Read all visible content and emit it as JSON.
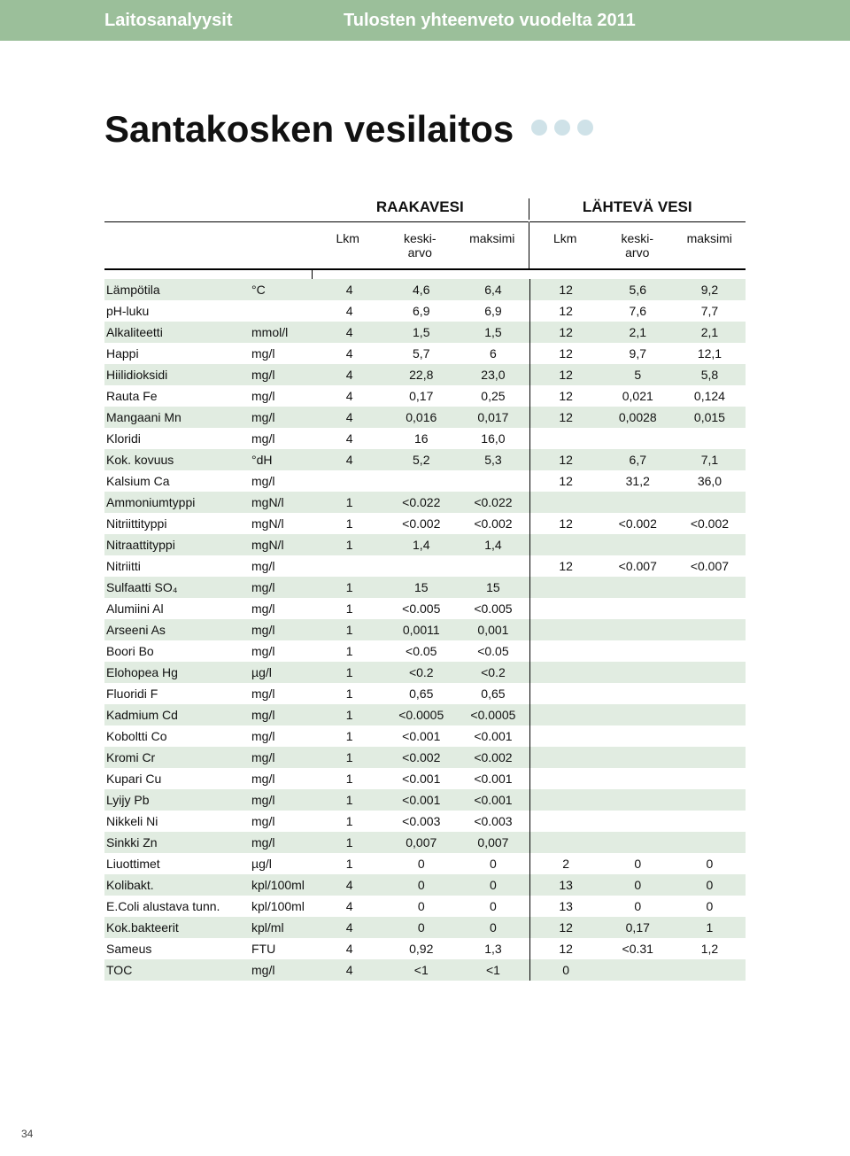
{
  "header": {
    "label1": "Laitosanalyysit",
    "label2": "Tulosten yhteenveto vuodelta 2011"
  },
  "title": "Santakosken vesilaitos",
  "dots": [
    "#cfe2e8",
    "#cfe2e8",
    "#cfe2e8"
  ],
  "sections": {
    "s1": "RAAKAVESI",
    "s2": "LÄHTEVÄ VESI"
  },
  "cols": {
    "lkm": "Lkm",
    "keskiarvo": "keski-\narvo",
    "maksimi": "maksimi"
  },
  "colors": {
    "alt_row": "#e1ece1",
    "header_bar": "#9bbf9a"
  },
  "rows": [
    {
      "alt": true,
      "param": "Lämpötila",
      "unit": "°C",
      "a": [
        "4",
        "4,6",
        "6,4"
      ],
      "b": [
        "12",
        "5,6",
        "9,2"
      ]
    },
    {
      "alt": false,
      "param": "pH-luku",
      "unit": "",
      "a": [
        "4",
        "6,9",
        "6,9"
      ],
      "b": [
        "12",
        "7,6",
        "7,7"
      ]
    },
    {
      "alt": true,
      "param": "Alkaliteetti",
      "unit": "mmol/l",
      "a": [
        "4",
        "1,5",
        "1,5"
      ],
      "b": [
        "12",
        "2,1",
        "2,1"
      ]
    },
    {
      "alt": false,
      "param": "Happi",
      "unit": "mg/l",
      "a": [
        "4",
        "5,7",
        "6"
      ],
      "b": [
        "12",
        "9,7",
        "12,1"
      ]
    },
    {
      "alt": true,
      "param": "Hiilidioksidi",
      "unit": "mg/l",
      "a": [
        "4",
        "22,8",
        "23,0"
      ],
      "b": [
        "12",
        "5",
        "5,8"
      ]
    },
    {
      "alt": false,
      "param": "Rauta Fe",
      "unit": "mg/l",
      "a": [
        "4",
        "0,17",
        "0,25"
      ],
      "b": [
        "12",
        "0,021",
        "0,124"
      ]
    },
    {
      "alt": true,
      "param": "Mangaani Mn",
      "unit": "mg/l",
      "a": [
        "4",
        "0,016",
        "0,017"
      ],
      "b": [
        "12",
        "0,0028",
        "0,015"
      ]
    },
    {
      "alt": false,
      "param": "Kloridi",
      "unit": "mg/l",
      "a": [
        "4",
        "16",
        "16,0"
      ],
      "b": [
        "",
        "",
        ""
      ]
    },
    {
      "alt": true,
      "param": "Kok. kovuus",
      "unit": "°dH",
      "a": [
        "4",
        "5,2",
        "5,3"
      ],
      "b": [
        "12",
        "6,7",
        "7,1"
      ]
    },
    {
      "alt": false,
      "param": "Kalsium Ca",
      "unit": "mg/l",
      "a": [
        "",
        "",
        ""
      ],
      "b": [
        "12",
        "31,2",
        "36,0"
      ]
    },
    {
      "alt": true,
      "param": "Ammoniumtyppi",
      "unit": "mgN/l",
      "a": [
        "1",
        "<0.022",
        "<0.022"
      ],
      "b": [
        "",
        "",
        ""
      ]
    },
    {
      "alt": false,
      "param": "Nitriittityppi",
      "unit": "mgN/l",
      "a": [
        "1",
        "<0.002",
        "<0.002"
      ],
      "b": [
        "12",
        "<0.002",
        "<0.002"
      ]
    },
    {
      "alt": true,
      "param": "Nitraattityppi",
      "unit": "mgN/l",
      "a": [
        "1",
        "1,4",
        "1,4"
      ],
      "b": [
        "",
        "",
        ""
      ]
    },
    {
      "alt": false,
      "param": "Nitriitti",
      "unit": "mg/l",
      "a": [
        "",
        "",
        ""
      ],
      "b": [
        "12",
        "<0.007",
        "<0.007"
      ]
    },
    {
      "alt": true,
      "param": "Sulfaatti SO₄",
      "unit": "mg/l",
      "a": [
        "1",
        "15",
        "15"
      ],
      "b": [
        "",
        "",
        ""
      ]
    },
    {
      "alt": false,
      "param": "Alumiini Al",
      "unit": "mg/l",
      "a": [
        "1",
        "<0.005",
        "<0.005"
      ],
      "b": [
        "",
        "",
        ""
      ]
    },
    {
      "alt": true,
      "param": "Arseeni As",
      "unit": "mg/l",
      "a": [
        "1",
        "0,0011",
        "0,001"
      ],
      "b": [
        "",
        "",
        ""
      ]
    },
    {
      "alt": false,
      "param": "Boori Bo",
      "unit": "mg/l",
      "a": [
        "1",
        "<0.05",
        "<0.05"
      ],
      "b": [
        "",
        "",
        ""
      ]
    },
    {
      "alt": true,
      "param": "Elohopea Hg",
      "unit": "µg/l",
      "a": [
        "1",
        "<0.2",
        "<0.2"
      ],
      "b": [
        "",
        "",
        ""
      ]
    },
    {
      "alt": false,
      "param": "Fluoridi F",
      "unit": "mg/l",
      "a": [
        "1",
        "0,65",
        "0,65"
      ],
      "b": [
        "",
        "",
        ""
      ]
    },
    {
      "alt": true,
      "param": "Kadmium Cd",
      "unit": "mg/l",
      "a": [
        "1",
        "<0.0005",
        "<0.0005"
      ],
      "b": [
        "",
        "",
        ""
      ]
    },
    {
      "alt": false,
      "param": "Koboltti Co",
      "unit": "mg/l",
      "a": [
        "1",
        "<0.001",
        "<0.001"
      ],
      "b": [
        "",
        "",
        ""
      ]
    },
    {
      "alt": true,
      "param": "Kromi Cr",
      "unit": "mg/l",
      "a": [
        "1",
        "<0.002",
        "<0.002"
      ],
      "b": [
        "",
        "",
        ""
      ]
    },
    {
      "alt": false,
      "param": "Kupari Cu",
      "unit": "mg/l",
      "a": [
        "1",
        "<0.001",
        "<0.001"
      ],
      "b": [
        "",
        "",
        ""
      ]
    },
    {
      "alt": true,
      "param": "Lyijy Pb",
      "unit": "mg/l",
      "a": [
        "1",
        "<0.001",
        "<0.001"
      ],
      "b": [
        "",
        "",
        ""
      ]
    },
    {
      "alt": false,
      "param": "Nikkeli Ni",
      "unit": "mg/l",
      "a": [
        "1",
        "<0.003",
        "<0.003"
      ],
      "b": [
        "",
        "",
        ""
      ]
    },
    {
      "alt": true,
      "param": "Sinkki Zn",
      "unit": "mg/l",
      "a": [
        "1",
        "0,007",
        "0,007"
      ],
      "b": [
        "",
        "",
        ""
      ]
    },
    {
      "alt": false,
      "param": "Liuottimet",
      "unit": "µg/l",
      "a": [
        "1",
        "0",
        "0"
      ],
      "b": [
        "2",
        "0",
        "0"
      ]
    },
    {
      "alt": true,
      "param": "Kolibakt.",
      "unit": "kpl/100ml",
      "a": [
        "4",
        "0",
        "0"
      ],
      "b": [
        "13",
        "0",
        "0"
      ]
    },
    {
      "alt": false,
      "param": "E.Coli alustava tunn.",
      "unit": "kpl/100ml",
      "a": [
        "4",
        "0",
        "0"
      ],
      "b": [
        "13",
        "0",
        "0"
      ]
    },
    {
      "alt": true,
      "param": "Kok.bakteerit",
      "unit": "kpl/ml",
      "a": [
        "4",
        "0",
        "0"
      ],
      "b": [
        "12",
        "0,17",
        "1"
      ]
    },
    {
      "alt": false,
      "param": "Sameus",
      "unit": "FTU",
      "a": [
        "4",
        "0,92",
        "1,3"
      ],
      "b": [
        "12",
        "<0.31",
        "1,2"
      ]
    },
    {
      "alt": true,
      "param": "TOC",
      "unit": "mg/l",
      "a": [
        "4",
        "<1",
        "<1"
      ],
      "b": [
        "0",
        "",
        ""
      ]
    }
  ],
  "page_number": "34"
}
